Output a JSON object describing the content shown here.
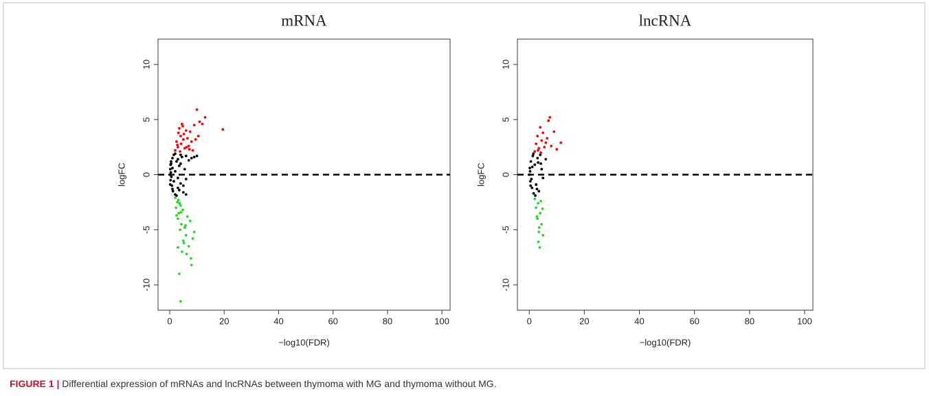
{
  "chart_data": [
    {
      "type": "scatter",
      "title": "mRNA",
      "x_label": "−log10(FDR)",
      "y_label": "logFC",
      "xlim": [
        -4.3,
        103
      ],
      "ylim": [
        -12.3,
        12.3
      ],
      "xticks": [
        0,
        20,
        40,
        60,
        80,
        100
      ],
      "yticks": [
        -10,
        -5,
        0,
        5,
        10
      ],
      "hline": 0,
      "series": [
        {
          "color": "#ff0000",
          "x": [
            2,
            2.5,
            3,
            3.2,
            3.5,
            4,
            4.2,
            4.5,
            5,
            5.5,
            6,
            6.5,
            7,
            7.5,
            8,
            8.5,
            9,
            10,
            10.5,
            11,
            12,
            13,
            19.5,
            3.8,
            4.8,
            2.8,
            6.2,
            5.2,
            9.5,
            7.2
          ],
          "values": [
            2.2,
            3.0,
            2.5,
            3.8,
            4.2,
            3.5,
            2.8,
            4.6,
            3.2,
            2.4,
            4.0,
            3.3,
            2.6,
            3.9,
            3.0,
            2.2,
            4.5,
            5.9,
            3.5,
            4.8,
            4.6,
            5.2,
            4.1,
            2.1,
            4.4,
            2.7,
            2.5,
            3.7,
            3.2,
            2.3
          ]
        },
        {
          "color": "#000000",
          "x": [
            0.1,
            0.2,
            0.3,
            0.5,
            0.8,
            1,
            1.2,
            1.5,
            2,
            2.5,
            3,
            3.5,
            4,
            4.5,
            5,
            5.5,
            6,
            0.4,
            0.6,
            1,
            1.5,
            2,
            2.5,
            3,
            3.5,
            4,
            5,
            6,
            7,
            8,
            0.2,
            0.5,
            1,
            2,
            3,
            4,
            6,
            9,
            10,
            0.3
          ],
          "values": [
            0,
            0.5,
            -0.5,
            1,
            -1,
            1.5,
            -1.5,
            1.8,
            -1.8,
            1.2,
            -1.2,
            0.8,
            -0.8,
            1.6,
            -1.6,
            0.5,
            -0.4,
            0.2,
            -0.2,
            0.6,
            -0.6,
            1.9,
            -1.9,
            1.4,
            -1.4,
            1,
            -1,
            1.7,
            1.3,
            1.5,
            -0.9,
            1.2,
            -1.3,
            0.3,
            -0.3,
            1.8,
            -1.8,
            1.6,
            1.7,
            0.9
          ]
        },
        {
          "color": "#22dd22",
          "x": [
            2,
            2.3,
            2.8,
            3,
            3.3,
            3.8,
            4,
            4.3,
            4.8,
            5,
            5.5,
            6,
            6.5,
            7,
            7.5,
            8,
            9,
            3.5,
            4.5,
            5.2,
            6.2,
            3.2,
            2.5,
            4,
            8.5,
            3.6,
            5.8,
            7.8,
            3,
            4.2
          ],
          "values": [
            -2.1,
            -3,
            -2.5,
            -4,
            -3.5,
            -5,
            -2.8,
            -4.5,
            -3.2,
            -6,
            -4.8,
            -5.5,
            -3.8,
            -6.5,
            -4.2,
            -8.2,
            -5.2,
            -9,
            -7,
            -6.2,
            -7.2,
            -2.3,
            -3.7,
            -11.5,
            -5.8,
            -2.6,
            -4.6,
            -7.6,
            -6.6,
            -3.4
          ]
        }
      ]
    },
    {
      "type": "scatter",
      "title": "lncRNA",
      "x_label": "−log10(FDR)",
      "y_label": "logFC",
      "xlim": [
        -4.3,
        103
      ],
      "ylim": [
        -12.3,
        12.3
      ],
      "xticks": [
        0,
        20,
        40,
        60,
        80,
        100
      ],
      "yticks": [
        -10,
        -5,
        0,
        5,
        10
      ],
      "hline": 0,
      "series": [
        {
          "color": "#ff0000",
          "x": [
            2,
            2.5,
            3,
            3.5,
            4,
            4.5,
            5,
            5.5,
            6,
            7,
            7.5,
            8,
            9,
            10,
            11.5,
            4.2,
            3.2,
            6.5
          ],
          "values": [
            2.1,
            2.8,
            3.5,
            2.4,
            4.3,
            3.1,
            3.8,
            2.5,
            2.9,
            4.9,
            5.2,
            2.6,
            3.9,
            2.3,
            2.9,
            2.0,
            2.2,
            3.3
          ]
        },
        {
          "color": "#000000",
          "x": [
            0.1,
            0.2,
            0.4,
            0.6,
            1,
            1.3,
            1.6,
            2,
            2.5,
            3,
            3.5,
            4,
            4.5,
            5,
            6,
            0.3,
            0.8,
            1.5,
            2.2,
            3.2,
            0.5,
            2.8,
            4.2,
            1.1
          ],
          "values": [
            0,
            0.6,
            -0.6,
            1.2,
            -1.2,
            1.7,
            -1.7,
            0.9,
            -0.9,
            1.5,
            -1.5,
            1.8,
            0.5,
            -0.3,
            1.4,
            0.3,
            -0.4,
            1.9,
            -1.9,
            1.1,
            -1,
            -1.3,
            1.0,
            0.7
          ]
        },
        {
          "color": "#22dd22",
          "x": [
            2,
            2.5,
            3,
            3.2,
            3.5,
            4,
            4.5,
            5,
            3.8,
            2.8,
            4.2,
            3.3,
            4.8,
            3.6
          ],
          "values": [
            -2.2,
            -3,
            -4,
            -2.6,
            -5.2,
            -3.5,
            -4.5,
            -5.5,
            -6.6,
            -3.8,
            -2.4,
            -6.1,
            -3.1,
            -4.8
          ]
        }
      ]
    }
  ],
  "caption": {
    "label": "FIGURE 1 |",
    "text": "Differential expression of mRNAs and lncRNAs between thymoma with MG and thymoma without MG."
  }
}
